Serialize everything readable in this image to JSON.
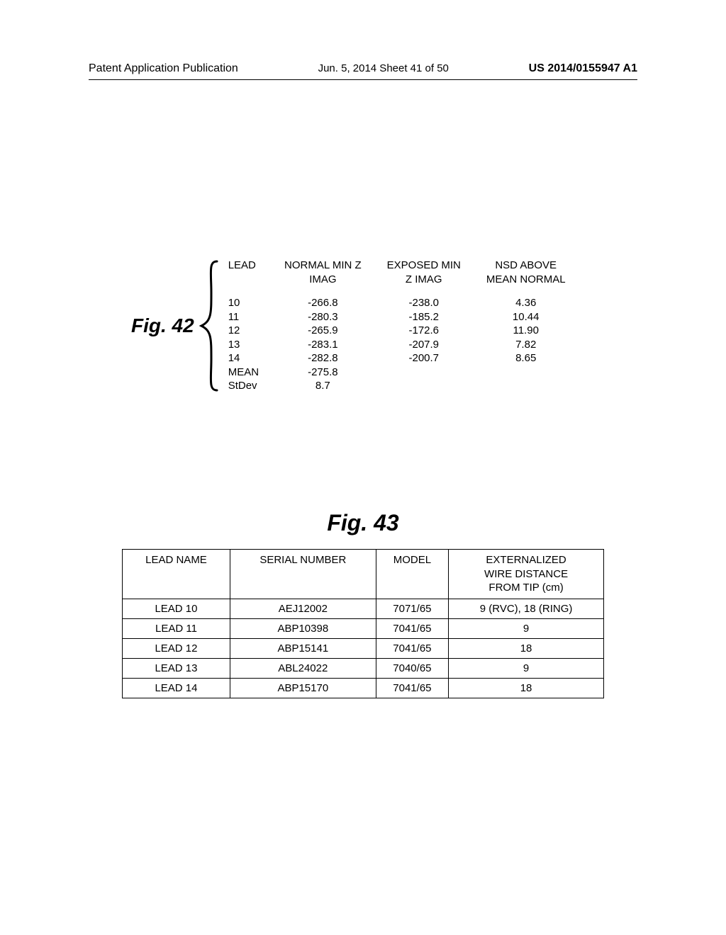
{
  "header": {
    "left": "Patent Application Publication",
    "mid": "Jun. 5, 2014   Sheet 41 of 50",
    "right": "US 2014/0155947 A1"
  },
  "fig42": {
    "label": "Fig. 42",
    "columns": {
      "lead": "LEAD",
      "normal_l1": "NORMAL MIN Z",
      "normal_l2": "IMAG",
      "exposed_l1": "EXPOSED MIN",
      "exposed_l2": "Z IMAG",
      "nsd_l1": "NSD ABOVE",
      "nsd_l2": "MEAN NORMAL"
    },
    "rows": [
      {
        "lead": "10",
        "normal": "-266.8",
        "exposed": "-238.0",
        "nsd": "4.36"
      },
      {
        "lead": "11",
        "normal": "-280.3",
        "exposed": "-185.2",
        "nsd": "10.44"
      },
      {
        "lead": "12",
        "normal": "-265.9",
        "exposed": "-172.6",
        "nsd": "11.90"
      },
      {
        "lead": "13",
        "normal": "-283.1",
        "exposed": "-207.9",
        "nsd": "7.82"
      },
      {
        "lead": "14",
        "normal": "-282.8",
        "exposed": "-200.7",
        "nsd": "8.65"
      },
      {
        "lead": "MEAN",
        "normal": "-275.8",
        "exposed": "",
        "nsd": ""
      },
      {
        "lead": "StDev",
        "normal": "8.7",
        "exposed": "",
        "nsd": ""
      }
    ]
  },
  "fig43": {
    "title": "Fig. 43",
    "columns": {
      "lead_name": "LEAD NAME",
      "serial": "SERIAL NUMBER",
      "model": "MODEL",
      "ext_l1": "EXTERNALIZED",
      "ext_l2": "WIRE DISTANCE",
      "ext_l3": "FROM TIP (cm)"
    },
    "rows": [
      {
        "lead_name": "LEAD 10",
        "serial": "AEJ12002",
        "model": "7071/65",
        "ext": "9 (RVC), 18 (RING)"
      },
      {
        "lead_name": "LEAD 11",
        "serial": "ABP10398",
        "model": "7041/65",
        "ext": "9"
      },
      {
        "lead_name": "LEAD 12",
        "serial": "ABP15141",
        "model": "7041/65",
        "ext": "18"
      },
      {
        "lead_name": "LEAD 13",
        "serial": "ABL24022",
        "model": "7040/65",
        "ext": "9"
      },
      {
        "lead_name": "LEAD 14",
        "serial": "ABP15170",
        "model": "7041/65",
        "ext": "18"
      }
    ]
  }
}
